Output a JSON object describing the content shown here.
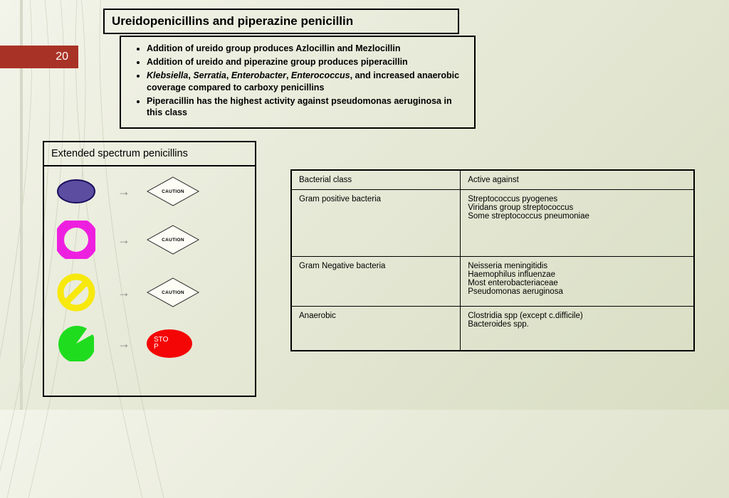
{
  "slide_number": "20",
  "title": "Ureidopenicillins and piperazine penicillin",
  "bullets": [
    "Addition of ureido group produces Azlocillin and Mezlocillin",
    "Addition of ureido and piperazine group produces piperacillin",
    "<i>Klebsiella</i>, <i>Serratia</i>, <i>Enterobacter</i>, <i>Enterococcus</i>, and increased anaerobic coverage compared to carboxy penicillins",
    "Piperacillin has the highest activity against pseudomonas aeruginosa in this class"
  ],
  "panel": {
    "title": "Extended spectrum penicillins",
    "diamond_label": "CAUTION",
    "stop_label": "STOP",
    "colors": {
      "ellipse_fill": "#5c4da0",
      "ellipse_stroke": "#1a0f5e",
      "donut": "#ee20e0",
      "nosign": "#f7e80e",
      "pac": "#1fdc1f",
      "stop": "#f40606",
      "diamond_fill": "#fdfdf6",
      "diamond_stroke": "#222"
    }
  },
  "table": {
    "headers": [
      "Bacterial class",
      "Active against"
    ],
    "rows": [
      {
        "c0": "Gram positive bacteria",
        "c1": [
          "Streptococcus pyogenes",
          "Viridans group streptococcus",
          "Some streptococcus pneumoniae"
        ]
      },
      {
        "c0": "Gram Negative bacteria",
        "c1": [
          "Neisseria meningitidis",
          "Haemophilus influenzae",
          "Most enterobacteriaceae",
          "Pseudomonas aeruginosa"
        ]
      },
      {
        "c0": "Anaerobic",
        "c1": [
          "Clostridia spp (except c.difficile)",
          "Bacteroides spp."
        ]
      }
    ]
  }
}
